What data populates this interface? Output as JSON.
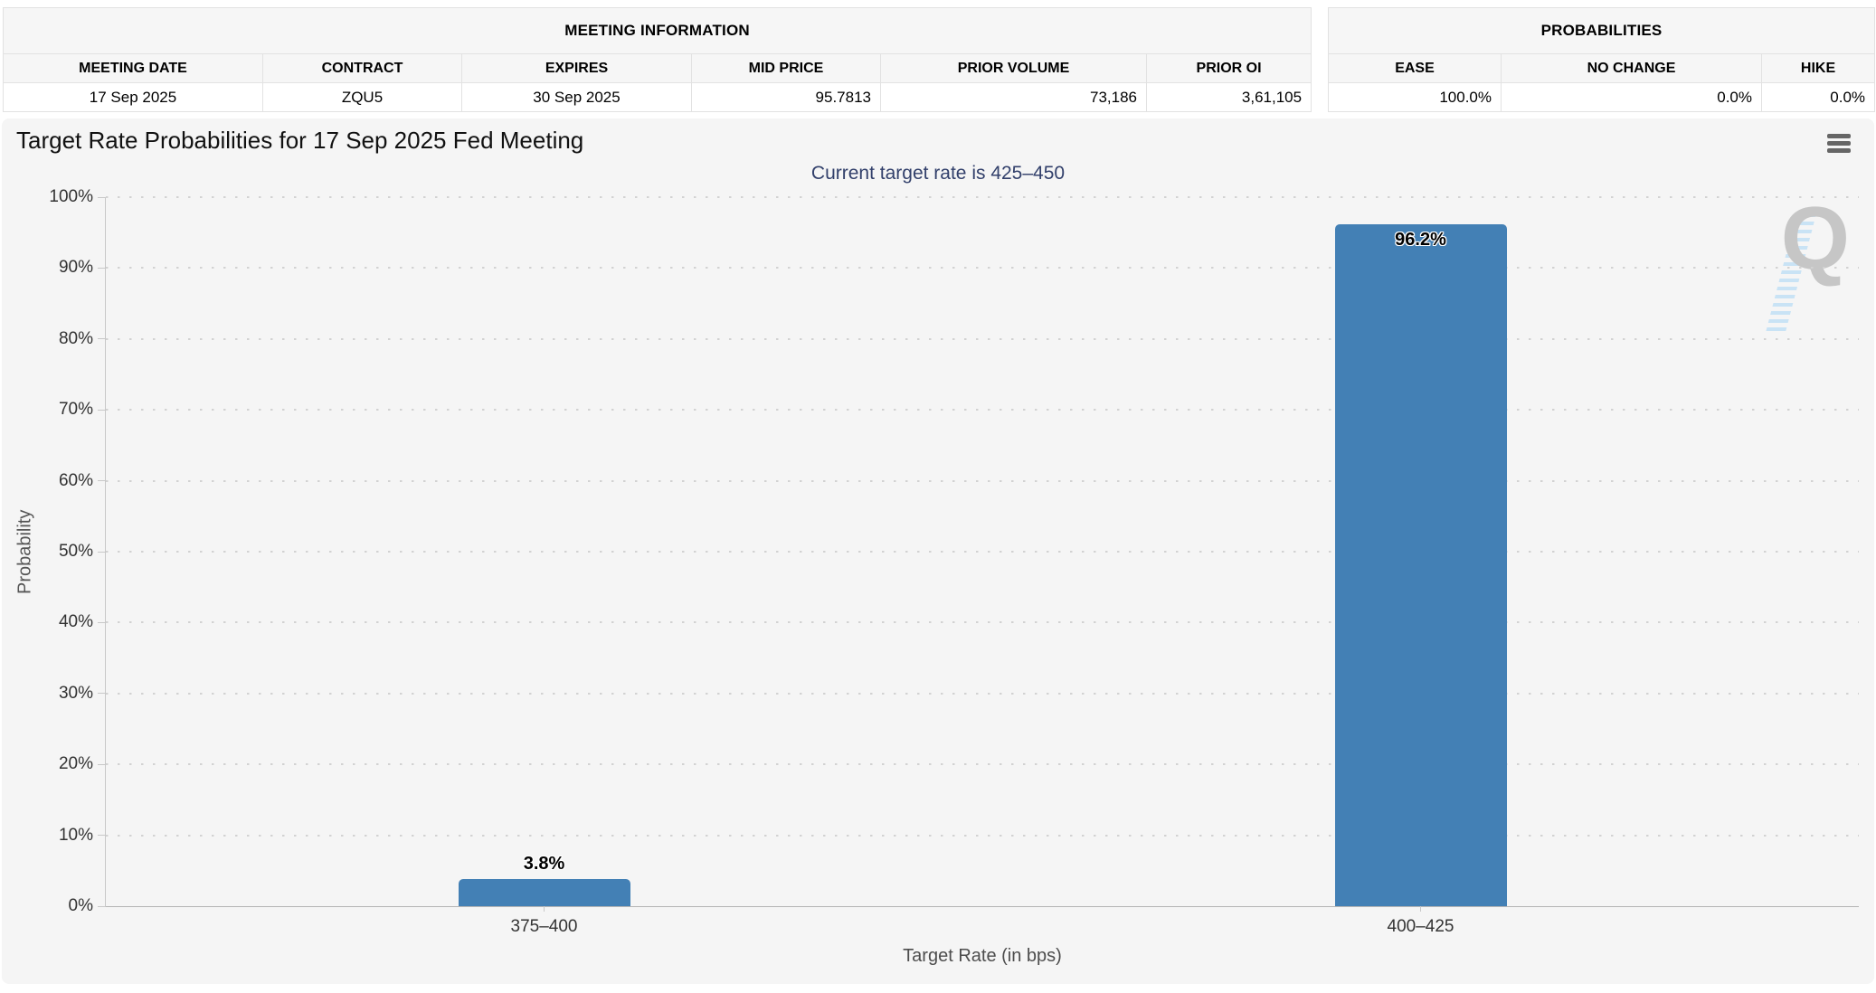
{
  "meeting_table": {
    "caption": "MEETING INFORMATION",
    "columns": [
      "MEETING DATE",
      "CONTRACT",
      "EXPIRES",
      "MID PRICE",
      "PRIOR VOLUME",
      "PRIOR OI"
    ],
    "values": [
      "17 Sep 2025",
      "ZQU5",
      "30 Sep 2025",
      "95.7813",
      "73,186",
      "3,61,105"
    ]
  },
  "prob_table": {
    "caption": "PROBABILITIES",
    "columns": [
      "EASE",
      "NO CHANGE",
      "HIKE"
    ],
    "values": [
      "100.0%",
      "0.0%",
      "0.0%"
    ]
  },
  "chart": {
    "title": "Target Rate Probabilities for 17 Sep 2025 Fed Meeting",
    "subtitle": "Current target rate is 425–450",
    "menu_icon": "hamburger-menu-icon",
    "watermark_letter": "Q"
  },
  "chart_data": {
    "type": "bar",
    "title": "Target Rate Probabilities for 17 Sep 2025 Fed Meeting",
    "subtitle": "Current target rate is 425–450",
    "categories": [
      "375–400",
      "400–425"
    ],
    "values": [
      3.8,
      96.2
    ],
    "data_labels": [
      "3.8%",
      "96.2%"
    ],
    "xlabel": "Target Rate (in bps)",
    "ylabel": "Probability",
    "ylim": [
      0,
      100
    ],
    "ytick_step": 10,
    "ytick_labels": [
      "0%",
      "10%",
      "20%",
      "30%",
      "40%",
      "50%",
      "60%",
      "70%",
      "80%",
      "90%",
      "100%"
    ],
    "grid": "dotted-horizontal",
    "legend": "none",
    "bar_color": "#4380b5"
  },
  "colors": {
    "bar": "#4380b5",
    "subtitle_text": "#32406b",
    "chart_background": "#f5f5f5",
    "table_header_background": "#f6f6f6",
    "table_border": "#e2e2e2",
    "axis_text": "#333333",
    "watermark_gray": "#c6c6c6",
    "watermark_blue": "#c9e3f5"
  }
}
